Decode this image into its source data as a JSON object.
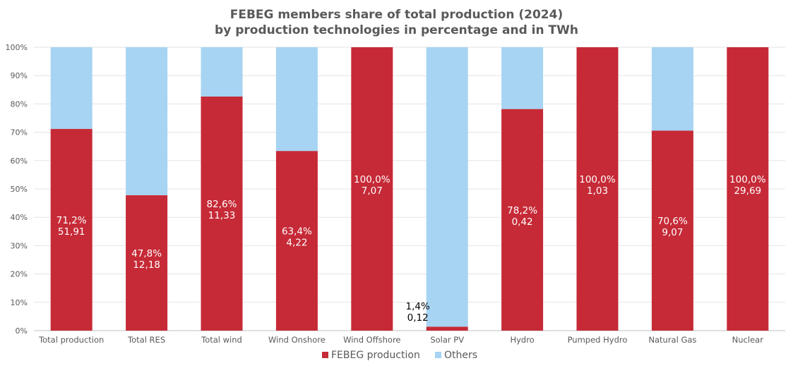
{
  "chart_data": {
    "type": "bar",
    "stacked": true,
    "title": "FEBEG members share of total production (2024)",
    "subtitle": "by production technologies in percentage and in TWh",
    "xlabel": "",
    "ylabel": "",
    "ylim": [
      0,
      100
    ],
    "yticks": [
      "0%",
      "10%",
      "20%",
      "30%",
      "40%",
      "50%",
      "60%",
      "70%",
      "80%",
      "90%",
      "100%"
    ],
    "grid": true,
    "legend_position": "bottom",
    "categories": [
      "Total production",
      "Total RES",
      "Total wind",
      "Wind Onshore",
      "Wind Offshore",
      "Solar PV",
      "Hydro",
      "Pumped Hydro",
      "Natural Gas",
      "Nuclear"
    ],
    "series": [
      {
        "name": "FEBEG production",
        "color": "#C62A37",
        "values": [
          71.2,
          47.8,
          82.6,
          63.4,
          100.0,
          1.4,
          78.2,
          100.0,
          70.6,
          100.0
        ],
        "labels_pct": [
          "71,2%",
          "47,8%",
          "82,6%",
          "63,4%",
          "100,0%",
          "1,4%",
          "78,2%",
          "100,0%",
          "70,6%",
          "100,0%"
        ],
        "labels_twh": [
          "51,91",
          "12,18",
          "11,33",
          "4,22",
          "7,07",
          "0,12",
          "0,42",
          "1,03",
          "9,07",
          "29,69"
        ]
      },
      {
        "name": "Others",
        "color": "#A6D4F2",
        "values": [
          28.8,
          52.2,
          17.4,
          36.6,
          0.0,
          98.6,
          21.8,
          0.0,
          29.4,
          0.0
        ]
      }
    ]
  }
}
